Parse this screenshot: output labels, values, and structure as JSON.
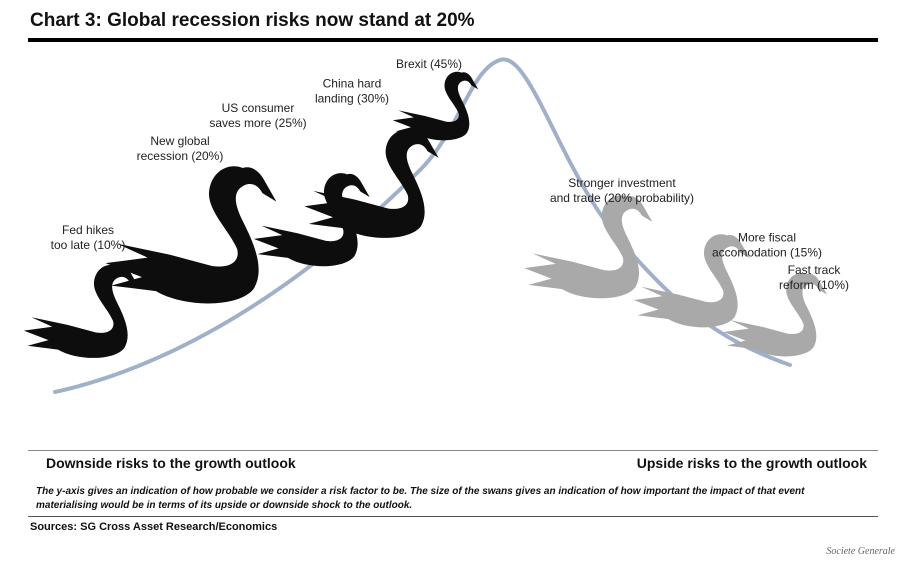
{
  "title": "Chart 3: Global recession risks now stand at 20%",
  "axis_left": "Downside risks to the growth outlook",
  "axis_right": "Upside risks to the growth outlook",
  "footnote": "The y-axis gives an indication of how probable we consider a risk factor to be. The size of the swans gives an indication of how important the impact of that event materialising would be in terms of its upside or downside shock to the outlook.",
  "source": "Sources: SG Cross Asset Research/Economics",
  "credit": "Societe Generale",
  "colors": {
    "downside": "#0d0d0d",
    "upside": "#a9a9a9",
    "curve": "#9fb0c8"
  },
  "chart_data": {
    "type": "scatter",
    "title": "Chart 3: Global recession risks now stand at 20%",
    "xlabel": "",
    "ylabel": "",
    "points": [
      {
        "label_lines": [
          "Fed hikes",
          "too late (10%)"
        ],
        "probability": 10,
        "side": "downside"
      },
      {
        "label_lines": [
          "New global",
          "recession (20%)"
        ],
        "probability": 20,
        "side": "downside"
      },
      {
        "label_lines": [
          "US consumer",
          "saves more (25%)"
        ],
        "probability": 25,
        "side": "downside"
      },
      {
        "label_lines": [
          "China hard",
          "landing (30%)"
        ],
        "probability": 30,
        "side": "downside"
      },
      {
        "label_lines": [
          "Brexit (45%)"
        ],
        "probability": 45,
        "side": "downside"
      },
      {
        "label_lines": [
          "Stronger investment",
          "and trade (20% probability)"
        ],
        "probability": 20,
        "side": "upside"
      },
      {
        "label_lines": [
          "More fiscal",
          "accomodation (15%)"
        ],
        "probability": 15,
        "side": "upside"
      },
      {
        "label_lines": [
          "Fast track",
          "reform (10%)"
        ],
        "probability": 10,
        "side": "upside"
      }
    ]
  }
}
